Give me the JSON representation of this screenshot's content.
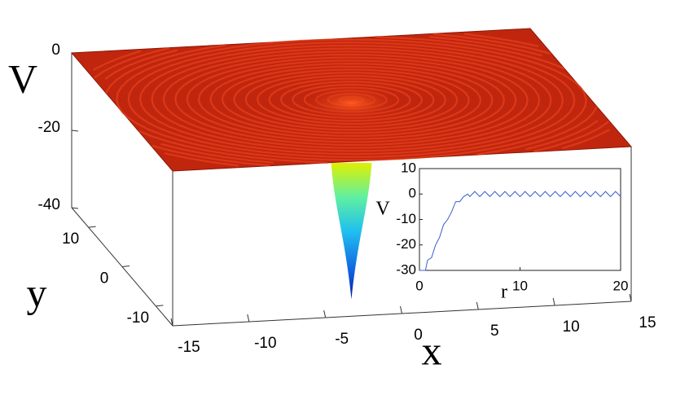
{
  "chart_data": [
    {
      "type": "surface3d",
      "xlabel": "x",
      "ylabel": "y",
      "zlabel": "V",
      "xlim": [
        -15,
        15
      ],
      "xticks": [
        -15,
        -10,
        -5,
        0,
        5,
        10,
        15
      ],
      "ylim": [
        -15,
        15
      ],
      "yticks": [
        -10,
        0,
        10
      ],
      "zlim": [
        -40,
        0
      ],
      "zticks": [
        -40,
        -20,
        0
      ],
      "color": "#c0260e"
    },
    {
      "type": "line",
      "xlabel": "r",
      "ylabel": "V",
      "xlim": [
        0,
        20
      ],
      "xticks": [
        0,
        10,
        20
      ],
      "ylim": [
        -30,
        10
      ],
      "yticks": [
        -30,
        -20,
        -10,
        0,
        10
      ],
      "x": [
        0,
        0.6,
        0.8,
        1.2,
        1.6,
        2,
        2.4,
        2.8,
        3.2,
        3.6,
        4,
        4.4,
        4.8,
        5,
        5.5,
        6,
        6.5,
        7,
        7.5,
        8,
        8.5,
        9,
        9.5,
        10,
        10.5,
        11,
        11.5,
        12,
        12.5,
        13,
        13.5,
        14,
        14.5,
        15,
        15.5,
        16,
        16.5,
        17,
        17.5,
        18,
        18.5,
        19,
        19.5,
        20
      ],
      "series": [
        {
          "color": "#3a5fcd",
          "values": [
            -30,
            -30,
            -26,
            -25,
            -20,
            -17,
            -12,
            -10,
            -7,
            -3,
            -3,
            -1,
            0,
            -1,
            1,
            -1,
            1,
            -1,
            1,
            -1,
            1,
            -1,
            1,
            -1,
            1,
            -1,
            1,
            -1,
            1,
            -1,
            1,
            -1,
            1,
            -1,
            1,
            -1,
            1,
            -1,
            1,
            -1,
            1,
            -1,
            1,
            -1
          ]
        }
      ]
    }
  ]
}
